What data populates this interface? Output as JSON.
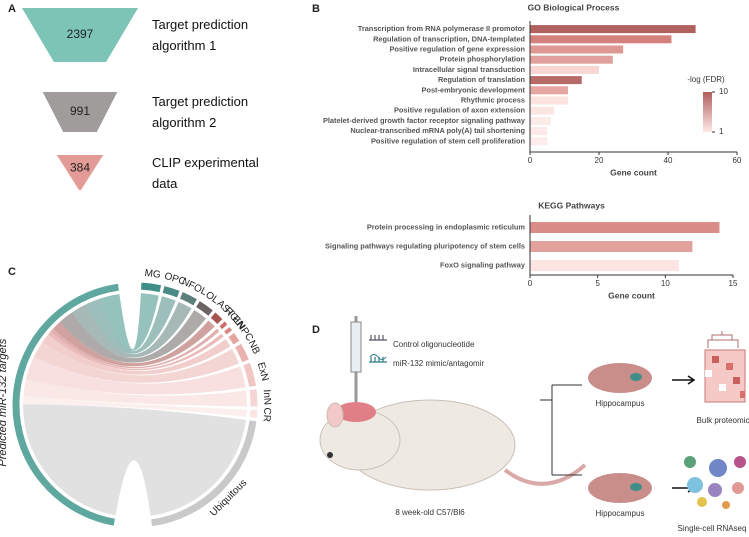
{
  "panel_labels": [
    "A",
    "B",
    "C",
    "D"
  ],
  "chart_data": [
    {
      "type": "funnel",
      "categories": [
        "Target prediction algorithm 1",
        "Target prediction algorithm 2",
        "CLIP experimental data"
      ],
      "values": [
        2397,
        991,
        384
      ],
      "colors": [
        "#7cc4b5",
        "#a09c9b",
        "#e29b96"
      ]
    },
    {
      "type": "hbar",
      "title": "GO Biological Process",
      "xlabel": "Gene count",
      "categories": [
        "Transcription from RNA polymerase II promotor",
        "Regulation of transcription, DNA-templated",
        "Positive regulation of gene expression",
        "Protein phosphorylation",
        "Intracellular signal transduction",
        "Regulation of translation",
        "Post-embryonic development",
        "Rhythmic process",
        "Positive regulation of axon extension",
        "Platelet-derived growth factor receptor signaling pathway",
        "Nuclear-transcribed mRNA poly(A) tail shortening",
        "Positive regulation of stem cell proliferation"
      ],
      "values": [
        48,
        41,
        27,
        24,
        20,
        15,
        11,
        11,
        7,
        6,
        5,
        5
      ],
      "colors": [
        "#b0605f",
        "#d4817e",
        "#dd9893",
        "#e0a09b",
        "#f7d6d3",
        "#b76b68",
        "#e5a6a1",
        "#fbe3e0",
        "#fbe6e3",
        "#fcebe9",
        "#fde9e7",
        "#fdeceb"
      ],
      "xlim": [
        0,
        60
      ],
      "xticks": [
        0,
        20,
        40,
        60
      ],
      "colorbar": {
        "title": "-log (FDR)",
        "range": [
          1,
          10
        ],
        "ticks": [
          10,
          1
        ],
        "colors": [
          "#fde8e6",
          "#b0605f"
        ]
      }
    },
    {
      "type": "hbar",
      "title": "KEGG Pathways",
      "xlabel": "Gene count",
      "categories": [
        "Protein processing in endoplasmic reticulum",
        "Signaling pathways regulating pluripotency of stem cells",
        "FoxO signaling pathway"
      ],
      "values": [
        14,
        12,
        11
      ],
      "colors": [
        "#d98c88",
        "#e2a19d",
        "#fce4e2"
      ],
      "xlim": [
        0,
        15
      ],
      "xticks": [
        0,
        5,
        10,
        15
      ]
    },
    {
      "type": "chord",
      "source": "Predicted miR-132 targets",
      "source_color": "#5fa8a0",
      "categories": [
        "MG",
        "OPC",
        "NFOL",
        "OL",
        "AST",
        "RGL",
        "EN",
        "NPC",
        "NB",
        "ExN",
        "InN",
        "CR",
        "Ubiquitous"
      ],
      "values": [
        25,
        20,
        20,
        20,
        12,
        5,
        5,
        12,
        22,
        30,
        22,
        10,
        200
      ],
      "colors": [
        "#3f8f88",
        "#4a8a84",
        "#5c7f7b",
        "#6b6462",
        "#a85552",
        "#c96e6a",
        "#d98481",
        "#e5a6a2",
        "#eab3af",
        "#f1c7c4",
        "#f5d6d4",
        "#f9e4e2",
        "#c9c9c9"
      ]
    }
  ],
  "diagram": {
    "treatments": [
      "Control oligonucleotide",
      "miR-132 mimic/antagomir"
    ],
    "mouse": "8 week-old C57/Bl6",
    "regions": [
      "Hippocampus",
      "Hippocampus"
    ],
    "outputs": [
      "Bulk proteomics",
      "Single-cell RNAseq"
    ]
  }
}
